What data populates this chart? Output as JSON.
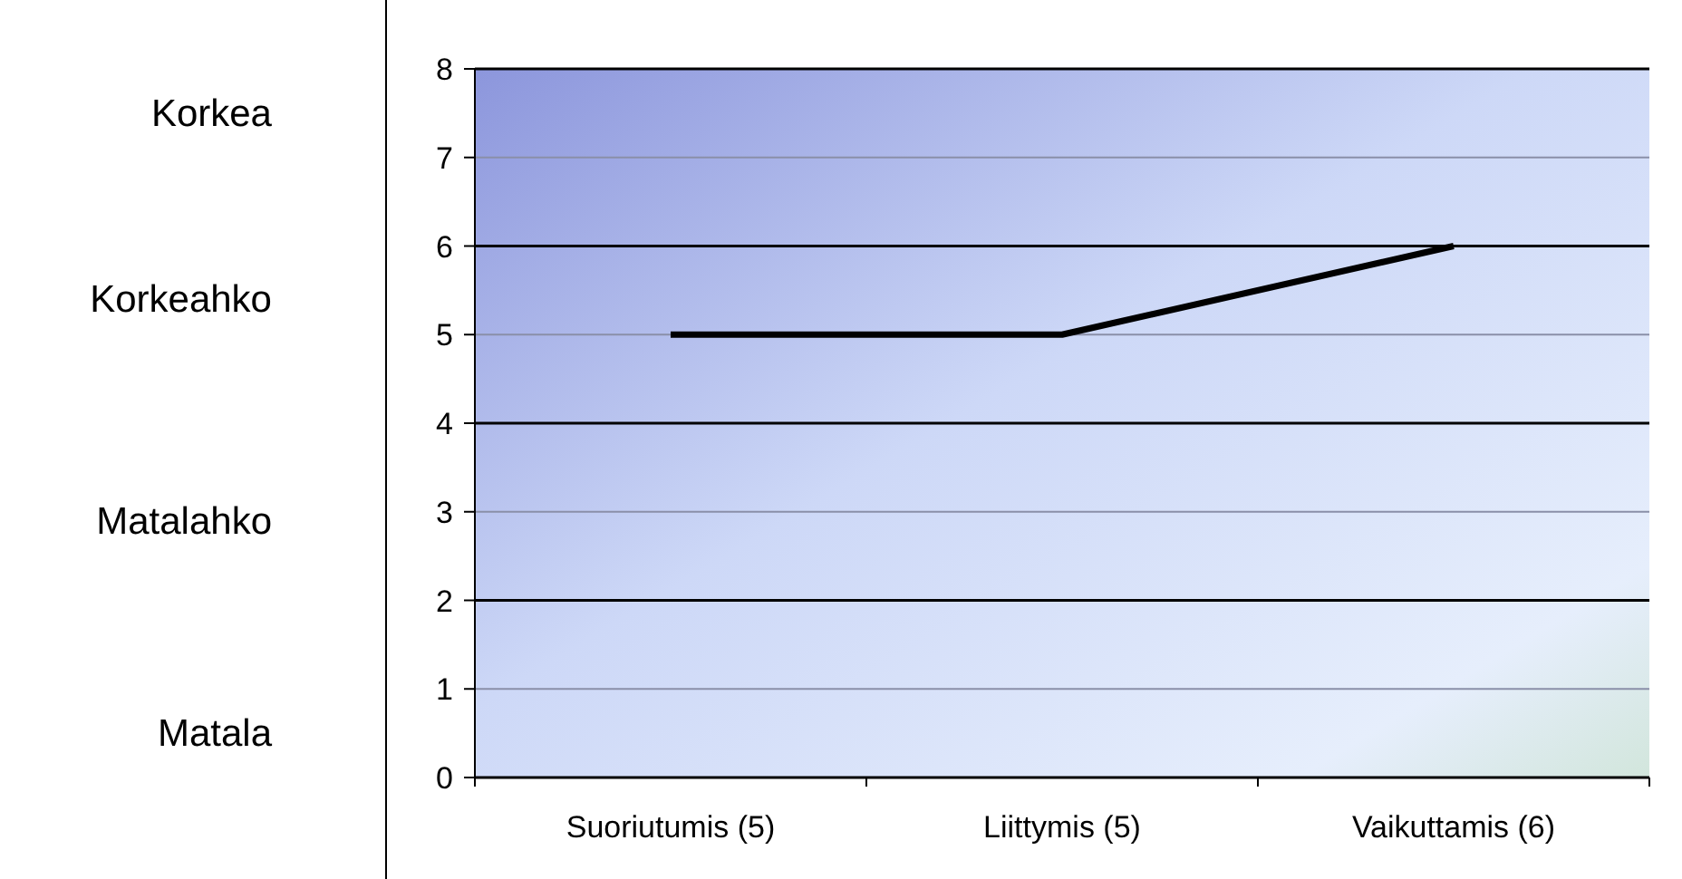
{
  "chart_data": {
    "type": "line",
    "categories": [
      "Suoriutumis (5)",
      "Liittymis (5)",
      "Vaikuttamis (6)"
    ],
    "series": [
      {
        "color": "#000000",
        "values": [
          5,
          5,
          6
        ]
      }
    ],
    "ylim": [
      0,
      8
    ],
    "yticks": [
      0,
      1,
      2,
      3,
      4,
      5,
      6,
      7,
      8
    ],
    "grid": "y",
    "marker": "none",
    "line_style": "solid",
    "annotations": [
      "Korkea",
      "Korkeahko",
      "Matalahko",
      "Matala"
    ]
  }
}
